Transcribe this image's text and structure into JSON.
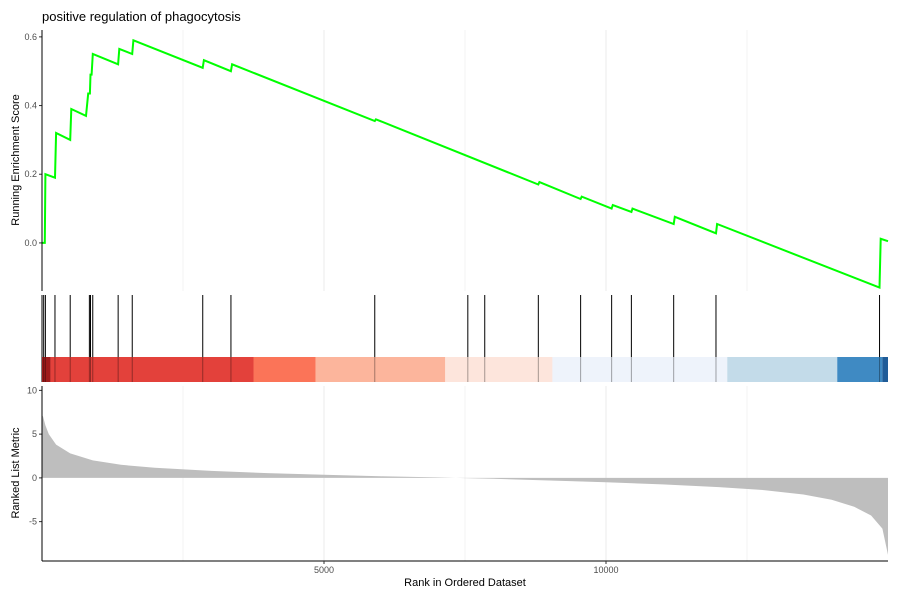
{
  "chart_data": {
    "type": "line",
    "title": "positive regulation of phagocytosis",
    "xlabel": "Rank in Ordered Dataset",
    "xlim": [
      0,
      15000
    ],
    "x_ticks": [
      {
        "value": 5000,
        "label": "5000"
      },
      {
        "value": 10000,
        "label": "10000"
      }
    ],
    "grid": true,
    "colors": {
      "es_line": "#00ff00",
      "hits": "#000000",
      "ranked_fill": "#bebebe",
      "axis": "#000000",
      "grid": "#ebebeb"
    },
    "panels": {
      "enrichment": {
        "ylabel": "Running Enrichment Score",
        "ylim": [
          -0.14,
          0.62
        ],
        "y_ticks": [
          {
            "value": 0.0,
            "label": "0.0"
          },
          {
            "value": 0.2,
            "label": "0.2"
          },
          {
            "value": 0.4,
            "label": "0.4"
          },
          {
            "value": 0.6,
            "label": "0.6"
          }
        ],
        "series": [
          {
            "x": [
              0,
              50,
              60,
              230,
              250,
              500,
              520,
              780,
              820,
              850,
              860,
              880,
              900,
              1350,
              1370,
              1600,
              1620,
              2850,
              2870,
              3350,
              3370,
              5900,
              5920,
              8800,
              8820,
              9550,
              9570,
              10100,
              10120,
              10450,
              10470,
              11200,
              11220,
              11950,
              11970,
              14850,
              14870,
              15000
            ],
            "y": [
              0,
              0,
              0.2,
              0.19,
              0.32,
              0.3,
              0.39,
              0.37,
              0.435,
              0.435,
              0.49,
              0.49,
              0.55,
              0.52,
              0.565,
              0.55,
              0.59,
              0.51,
              0.532,
              0.5,
              0.52,
              0.355,
              0.36,
              0.17,
              0.177,
              0.128,
              0.135,
              0.1,
              0.11,
              0.09,
              0.1,
              0.055,
              0.076,
              0.028,
              0.055,
              -0.13,
              0.012,
              0.005
            ]
          }
        ]
      },
      "hits": {
        "positions": [
          30,
          60,
          230,
          500,
          840,
          860,
          900,
          1350,
          1600,
          2850,
          3350,
          5900,
          7550,
          7850,
          8800,
          9550,
          10100,
          10450,
          11200,
          11950,
          14850
        ]
      },
      "color_bar": {
        "segments": [
          {
            "from": 0,
            "to": 150,
            "color": "#a01c1c"
          },
          {
            "from": 150,
            "to": 3750,
            "color": "#e3413b"
          },
          {
            "from": 3750,
            "to": 4850,
            "color": "#fb7458"
          },
          {
            "from": 4850,
            "to": 7150,
            "color": "#fcb59c"
          },
          {
            "from": 7150,
            "to": 9050,
            "color": "#fde5dc"
          },
          {
            "from": 9050,
            "to": 12150,
            "color": "#eef3fb"
          },
          {
            "from": 12150,
            "to": 14100,
            "color": "#c3dbe9"
          },
          {
            "from": 14100,
            "to": 14900,
            "color": "#3f8ac3"
          },
          {
            "from": 14900,
            "to": 15000,
            "color": "#205c98"
          }
        ]
      },
      "ranked": {
        "ylabel": "Ranked List Metric",
        "ylim": [
          -9.5,
          10.5
        ],
        "y_ticks": [
          {
            "value": -5,
            "label": "-5"
          },
          {
            "value": 0,
            "label": "0"
          },
          {
            "value": 5,
            "label": "5"
          },
          {
            "value": 10,
            "label": "10"
          }
        ],
        "x": [
          0,
          20,
          60,
          120,
          250,
          500,
          900,
          1400,
          2000,
          3000,
          4000,
          5000,
          6000,
          7000,
          7500,
          8000,
          9000,
          10000,
          11000,
          12000,
          12800,
          13500,
          14000,
          14400,
          14700,
          14900,
          15000
        ],
        "values": [
          7.2,
          7.0,
          6.0,
          5.0,
          3.8,
          2.8,
          2.0,
          1.5,
          1.15,
          0.8,
          0.55,
          0.35,
          0.18,
          0.05,
          -0.03,
          -0.1,
          -0.3,
          -0.5,
          -0.75,
          -1.05,
          -1.4,
          -1.9,
          -2.5,
          -3.3,
          -4.3,
          -5.8,
          -8.8
        ]
      }
    }
  }
}
